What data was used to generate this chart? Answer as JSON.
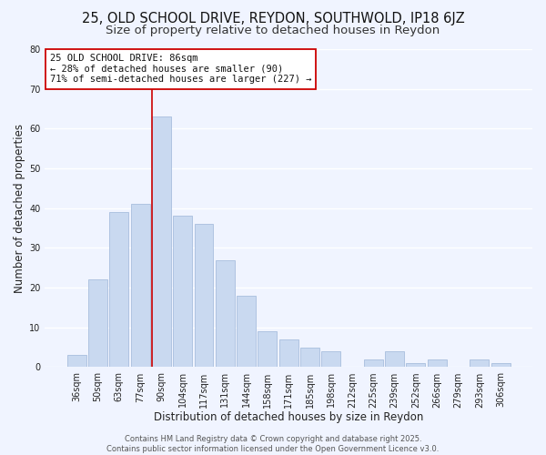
{
  "title": "25, OLD SCHOOL DRIVE, REYDON, SOUTHWOLD, IP18 6JZ",
  "subtitle": "Size of property relative to detached houses in Reydon",
  "xlabel": "Distribution of detached houses by size in Reydon",
  "ylabel": "Number of detached properties",
  "bar_labels": [
    "36sqm",
    "50sqm",
    "63sqm",
    "77sqm",
    "90sqm",
    "104sqm",
    "117sqm",
    "131sqm",
    "144sqm",
    "158sqm",
    "171sqm",
    "185sqm",
    "198sqm",
    "212sqm",
    "225sqm",
    "239sqm",
    "252sqm",
    "266sqm",
    "279sqm",
    "293sqm",
    "306sqm"
  ],
  "bar_values": [
    3,
    22,
    39,
    41,
    63,
    38,
    36,
    27,
    18,
    9,
    7,
    5,
    4,
    0,
    2,
    4,
    1,
    2,
    0,
    2,
    1
  ],
  "bar_color": "#c9d9f0",
  "bar_edge_color": "#a8bedd",
  "vline_color": "#cc0000",
  "vline_index": 4,
  "annotation_text": "25 OLD SCHOOL DRIVE: 86sqm\n← 28% of detached houses are smaller (90)\n71% of semi-detached houses are larger (227) →",
  "annotation_box_edgecolor": "#cc0000",
  "annotation_box_facecolor": "#ffffff",
  "ylim": [
    0,
    80
  ],
  "yticks": [
    0,
    10,
    20,
    30,
    40,
    50,
    60,
    70,
    80
  ],
  "footer_text": "Contains HM Land Registry data © Crown copyright and database right 2025.\nContains public sector information licensed under the Open Government Licence v3.0.",
  "background_color": "#f0f4ff",
  "grid_color": "#ffffff",
  "title_fontsize": 10.5,
  "subtitle_fontsize": 9.5,
  "axis_label_fontsize": 8.5,
  "tick_fontsize": 7,
  "annotation_fontsize": 7.5,
  "footer_fontsize": 6
}
